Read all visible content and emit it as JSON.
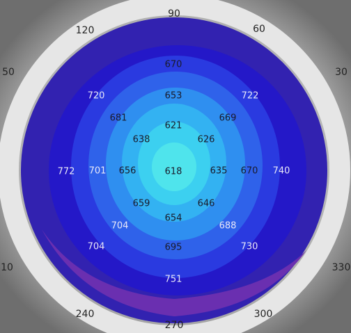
{
  "angle_labels": [
    "90",
    "60",
    "120",
    "30",
    "50",
    "330",
    "10",
    "240",
    "300",
    "270"
  ],
  "readings": [
    670,
    720,
    653,
    722,
    681,
    669,
    621,
    638,
    626,
    772,
    701,
    656,
    618,
    635,
    670,
    740,
    659,
    646,
    654,
    704,
    688,
    704,
    695,
    730,
    751
  ]
}
